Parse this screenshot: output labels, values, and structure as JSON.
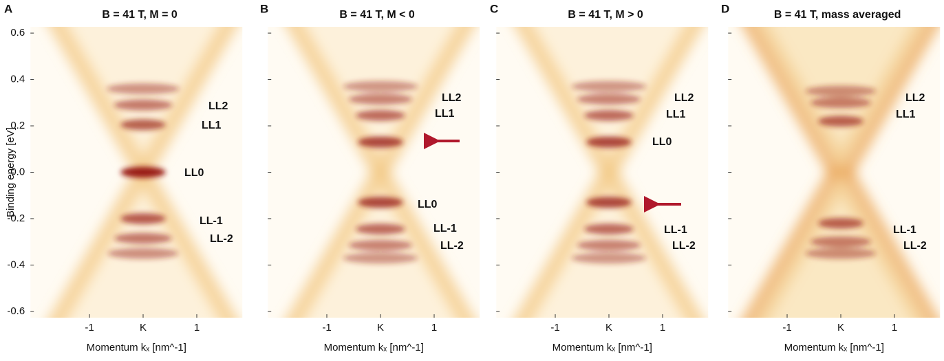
{
  "chart_data": [
    {
      "type": "heatmap",
      "panel": "A",
      "title": "B = 41 T, M = 0",
      "xlabel": "Momentum kₓ [nm^-1]",
      "ylabel": "Binding energy [eV]",
      "xlim": [
        -2.1,
        1.85
      ],
      "ylim": [
        -0.627,
        0.627
      ],
      "xticks": [
        -1,
        {
          "value": 0,
          "label": "K"
        },
        1
      ],
      "yticks": [
        0.6,
        0.4,
        0.2,
        {
          "value": 0,
          "label": "0.0"
        },
        -0.2,
        -0.4,
        -0.6
      ],
      "levels": [
        0.36,
        0.29,
        0.205,
        0,
        -0.2,
        -0.285,
        -0.35
      ],
      "labels": [
        "LL2",
        "LL1",
        "LL0",
        "LL-1",
        "LL-2"
      ]
    },
    {
      "type": "heatmap",
      "panel": "B",
      "title": "B = 41 T, M < 0",
      "xlabel": "Momentum kₓ [nm^-1]",
      "xlim": [
        -2.1,
        1.85
      ],
      "ylim": [
        -0.627,
        0.627
      ],
      "xticks": [
        -1,
        {
          "value": 0,
          "label": "K"
        },
        1
      ],
      "levels": [
        0.37,
        0.315,
        0.245,
        0.13,
        -0.13,
        -0.245,
        -0.315,
        -0.37
      ],
      "labels": [
        "LL2",
        "LL1",
        "LL0",
        "LL-1",
        "LL-2"
      ]
    },
    {
      "type": "heatmap",
      "panel": "C",
      "title": "B = 41 T, M > 0",
      "xlabel": "Momentum kₓ [nm^-1]",
      "xlim": [
        -2.1,
        1.85
      ],
      "ylim": [
        -0.627,
        0.627
      ],
      "xticks": [
        -1,
        {
          "value": 0,
          "label": "K"
        },
        1
      ],
      "levels": [
        0.37,
        0.315,
        0.245,
        0.13,
        -0.13,
        -0.245,
        -0.315,
        -0.37
      ],
      "labels": [
        "LL2",
        "LL1",
        "LL0",
        "LL-1",
        "LL-2"
      ]
    },
    {
      "type": "heatmap",
      "panel": "D",
      "title": "B = 41 T, mass averaged",
      "xlabel": "Momentum kₓ [nm^-1]",
      "xlim": [
        -2.1,
        1.85
      ],
      "ylim": [
        -0.627,
        0.627
      ],
      "xticks": [
        -1,
        {
          "value": 0,
          "label": "K"
        },
        1
      ],
      "levels": [
        0.35,
        0.3,
        0.22,
        -0.22,
        -0.3,
        -0.35
      ],
      "labels": [
        "LL2",
        "LL1",
        "LL-1",
        "LL-2"
      ]
    }
  ]
}
